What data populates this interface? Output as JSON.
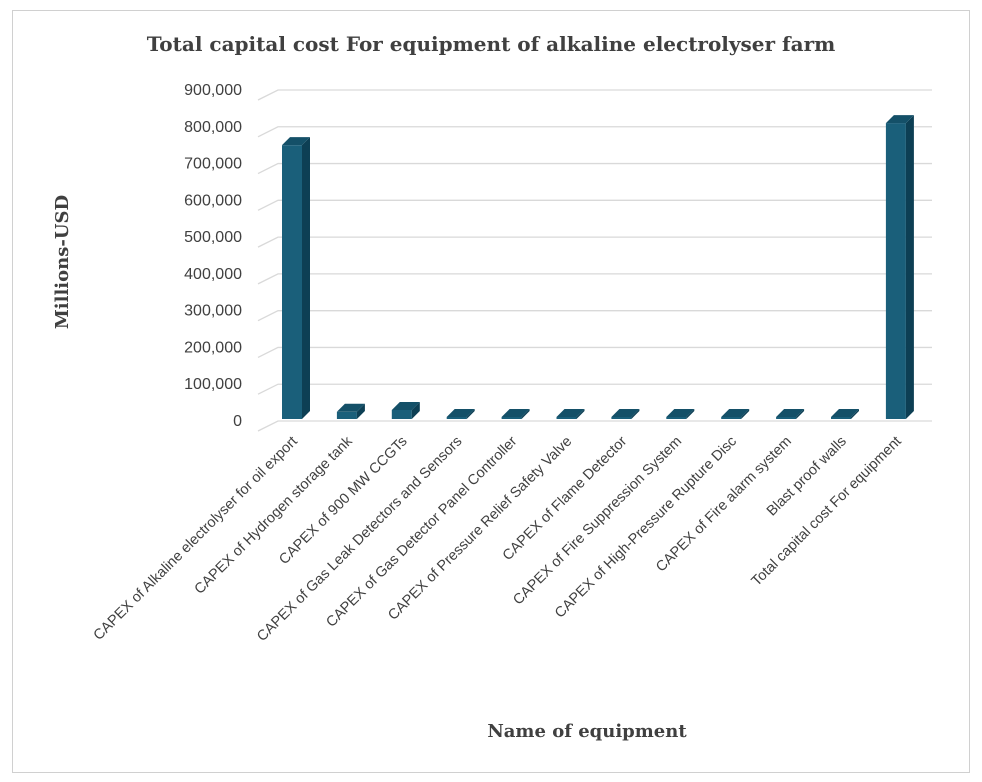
{
  "chart_data": {
    "type": "bar",
    "title": "Total capital cost For equipment of alkaline electrolyser farm",
    "xlabel": "Name of equipment",
    "ylabel": "Millions-USD",
    "ylim": [
      0,
      900000
    ],
    "yticks": [
      0,
      100000,
      200000,
      300000,
      400000,
      500000,
      600000,
      700000,
      800000,
      900000
    ],
    "ytick_labels": [
      "0",
      "100,000",
      "200,000",
      "300,000",
      "400,000",
      "500,000",
      "600,000",
      "700,000",
      "800,000",
      "900,000"
    ],
    "grid": true,
    "legend": "none",
    "bar_color": "#1a5f7a",
    "categories": [
      "CAPEX of Alkaline electrolyser for oil export",
      "CAPEX of Hydrogen storage tank",
      "CAPEX of 900 MW CCGTs",
      "CAPEX of Gas Leak Detectors and Sensors",
      "CAPEX of Gas Detector Panel Controller",
      "CAPEX of Pressure Relief Safety Valve",
      "CAPEX of Flame Detector",
      "CAPEX of Fire Suppression System",
      "CAPEX of High-Pressure Rupture Disc",
      "CAPEX of Fire alarm system",
      "Blast proof walls",
      "Total capital cost For equipment"
    ],
    "values": [
      750000,
      25000,
      30000,
      500,
      200,
      300,
      200,
      400,
      300,
      1500,
      300,
      810000
    ]
  }
}
